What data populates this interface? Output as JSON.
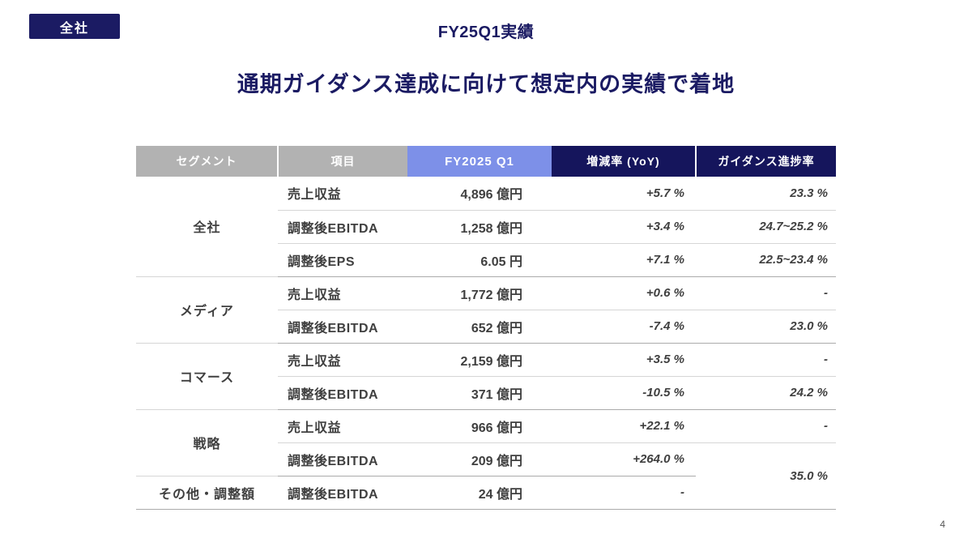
{
  "slide": {
    "badge": "全社",
    "header": "FY25Q1実績",
    "title": "通期ガイダンス達成に向けて想定内の実績で着地",
    "page_number": "4"
  },
  "colors": {
    "navy": "#1b1b63",
    "header-gray": "#b2b2b2",
    "header-blue": "#7d90e8",
    "header-navy": "#15155c",
    "text": "#3f3f3f",
    "line": "#d6d6d6",
    "line-strong": "#ababab"
  },
  "table": {
    "headers": {
      "segment": "セグメント",
      "item": "項目",
      "value": "FY2025 Q1",
      "yoy": "増減率 (YoY)",
      "progress": "ガイダンス進捗率"
    },
    "rows": [
      {
        "segment": "全社",
        "item": "売上収益",
        "value": "4,896 億円",
        "yoy": "+5.7 %",
        "progress": "23.3 %"
      },
      {
        "item": "調整後EBITDA",
        "value": "1,258 億円",
        "yoy": "+3.4 %",
        "progress": "24.7~25.2 %"
      },
      {
        "item": "調整後EPS",
        "value": "6.05 円",
        "yoy": "+7.1 %",
        "progress": "22.5~23.4 %"
      },
      {
        "segment": "メディア",
        "item": "売上収益",
        "value": "1,772 億円",
        "yoy": "+0.6 %",
        "progress": "-"
      },
      {
        "item": "調整後EBITDA",
        "value": "652 億円",
        "yoy": "-7.4 %",
        "progress": "23.0 %"
      },
      {
        "segment": "コマース",
        "item": "売上収益",
        "value": "2,159 億円",
        "yoy": "+3.5 %",
        "progress": "-"
      },
      {
        "item": "調整後EBITDA",
        "value": "371 億円",
        "yoy": "-10.5 %",
        "progress": "24.2 %"
      },
      {
        "segment": "戦略",
        "item": "売上収益",
        "value": "966 億円",
        "yoy": "+22.1 %",
        "progress": "-"
      },
      {
        "item": "調整後EBITDA",
        "value": "209 億円",
        "yoy": "+264.0 %",
        "progress": "35.0 %"
      },
      {
        "segment": "その他・調整額",
        "item": "調整後EBITDA",
        "value": "24 億円",
        "yoy": "-"
      }
    ]
  }
}
